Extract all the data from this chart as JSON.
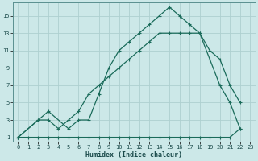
{
  "xlabel": "Humidex (Indice chaleur)",
  "bg_color": "#cce8e8",
  "line_color": "#1a6b5a",
  "grid_color": "#aed0d0",
  "xlim": [
    -0.5,
    23.5
  ],
  "ylim": [
    0.5,
    16.5
  ],
  "xticks": [
    0,
    1,
    2,
    3,
    4,
    5,
    6,
    7,
    8,
    9,
    10,
    11,
    12,
    13,
    14,
    15,
    16,
    17,
    18,
    19,
    20,
    21,
    22,
    23
  ],
  "yticks": [
    1,
    3,
    5,
    7,
    9,
    11,
    13,
    15
  ],
  "line1_x": [
    0,
    1,
    2,
    3,
    4,
    5,
    6,
    7,
    8,
    9,
    10,
    11,
    12,
    13,
    14,
    15,
    16,
    17,
    18,
    19,
    20,
    21,
    22
  ],
  "line1_y": [
    1,
    1,
    1,
    1,
    1,
    1,
    1,
    1,
    1,
    1,
    1,
    1,
    1,
    1,
    1,
    1,
    1,
    1,
    1,
    1,
    1,
    1,
    2
  ],
  "line2_x": [
    0,
    2,
    3,
    4,
    5,
    6,
    7,
    8,
    9,
    10,
    11,
    12,
    13,
    14,
    15,
    16,
    17,
    18,
    19,
    20,
    21,
    22
  ],
  "line2_y": [
    1,
    3,
    3,
    2,
    3,
    4,
    6,
    7,
    8,
    9,
    10,
    11,
    12,
    13,
    13,
    13,
    13,
    13,
    10,
    7,
    5,
    2
  ],
  "line3_x": [
    0,
    2,
    3,
    5,
    6,
    7,
    8,
    9,
    10,
    11,
    12,
    13,
    14,
    15,
    16,
    17,
    18,
    19,
    20,
    21,
    22
  ],
  "line3_y": [
    1,
    3,
    4,
    2,
    3,
    3,
    6,
    9,
    11,
    12,
    13,
    14,
    15,
    16,
    15,
    14,
    13,
    11,
    10,
    7,
    5
  ]
}
